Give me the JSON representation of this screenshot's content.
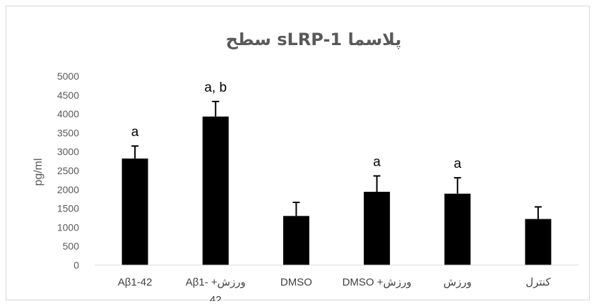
{
  "chart_data": {
    "type": "bar",
    "title": "سطح sLRP-1 پلاسما",
    "ylabel": "pg/ml",
    "xlabel": "",
    "ylim": [
      0,
      5000
    ],
    "yticks": [
      0,
      500,
      1000,
      1500,
      2000,
      2500,
      3000,
      3500,
      4000,
      4500,
      5000
    ],
    "grid": false,
    "legend": "none",
    "categories": [
      [
        "Aβ1-42"
      ],
      [
        "Aβ1- +ورزش",
        "42"
      ],
      [
        "DMSO"
      ],
      [
        "DMSO +ورزش"
      ],
      [
        "ورزش"
      ],
      [
        "کنترل"
      ]
    ],
    "values": [
      2820,
      3930,
      1300,
      1940,
      1890,
      1220
    ],
    "error_upper": [
      330,
      400,
      360,
      420,
      420,
      320
    ],
    "annotations": [
      "a",
      "a, b",
      "",
      "a",
      "a",
      ""
    ],
    "bar_color": "#000000"
  }
}
